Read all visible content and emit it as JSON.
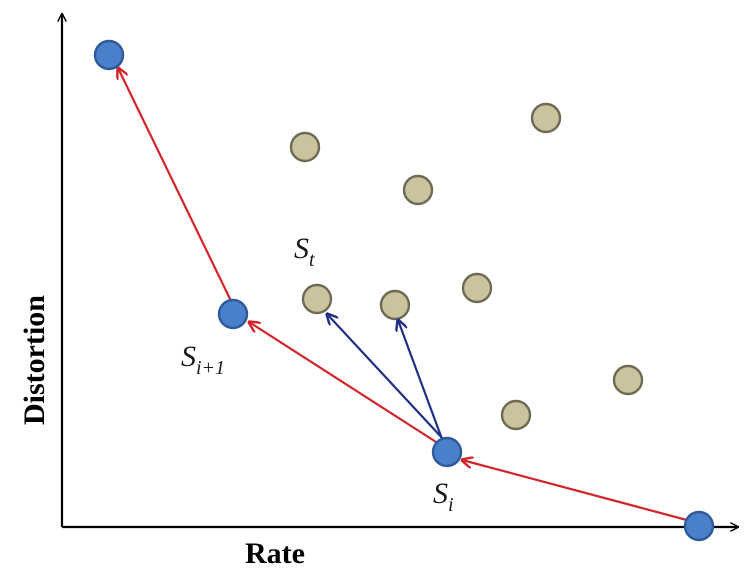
{
  "axes": {
    "x_title": "Rate",
    "y_title": "Distortion"
  },
  "labels": {
    "s_i": {
      "base": "S",
      "sub": "i"
    },
    "s_i_plus_1": {
      "base": "S",
      "sub": "i+1"
    },
    "s_t": {
      "base": "S",
      "sub": "t"
    }
  },
  "colors": {
    "hull_point_fill": "#4a7fc9",
    "hull_point_stroke": "#2d5a99",
    "candidate_fill": "#cbc29e",
    "candidate_stroke": "#6f6a55",
    "hull_arrow": "#d4242b",
    "candidate_arrow": "#1f2f86",
    "axis": "#000000"
  }
}
